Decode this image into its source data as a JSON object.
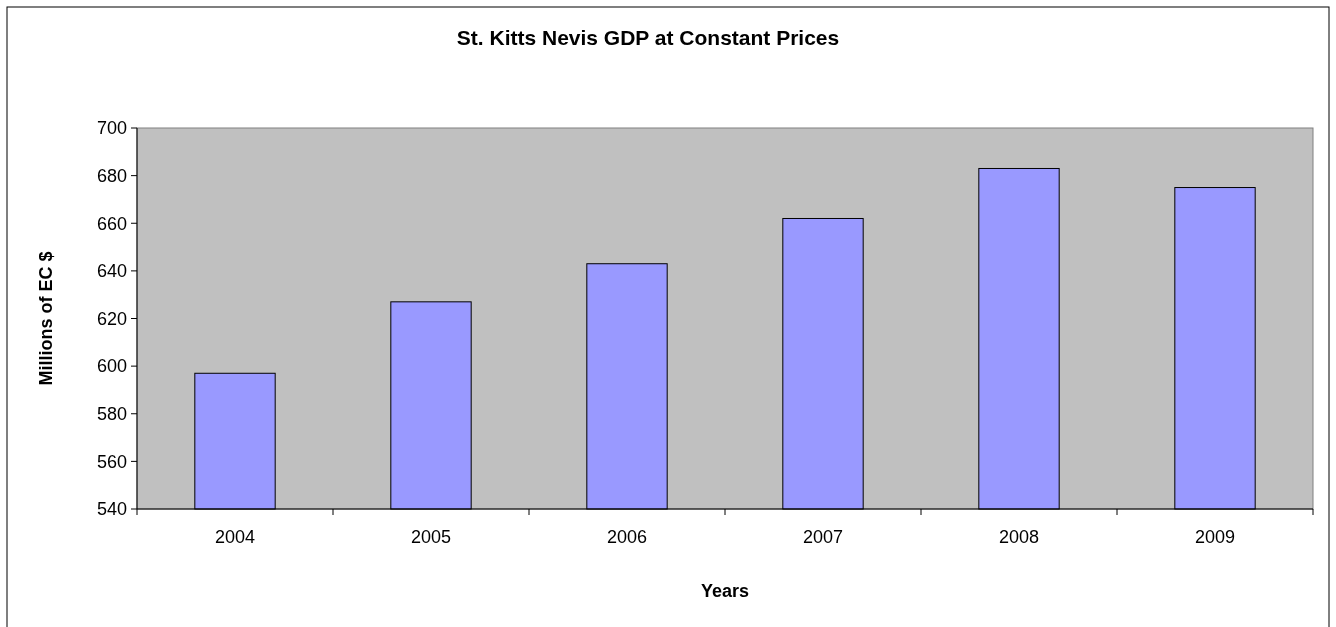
{
  "chart_data": {
    "type": "bar",
    "title": "St. Kitts Nevis GDP at Constant Prices",
    "xlabel": "Years",
    "ylabel": "Millions of EC $",
    "categories": [
      "2004",
      "2005",
      "2006",
      "2007",
      "2008",
      "2009"
    ],
    "values": [
      597,
      627,
      643,
      662,
      683,
      675
    ],
    "color": "#9999ff",
    "ylim": [
      540,
      700
    ],
    "yticks": [
      540,
      560,
      580,
      600,
      620,
      640,
      660,
      680,
      700
    ],
    "grid": false
  }
}
